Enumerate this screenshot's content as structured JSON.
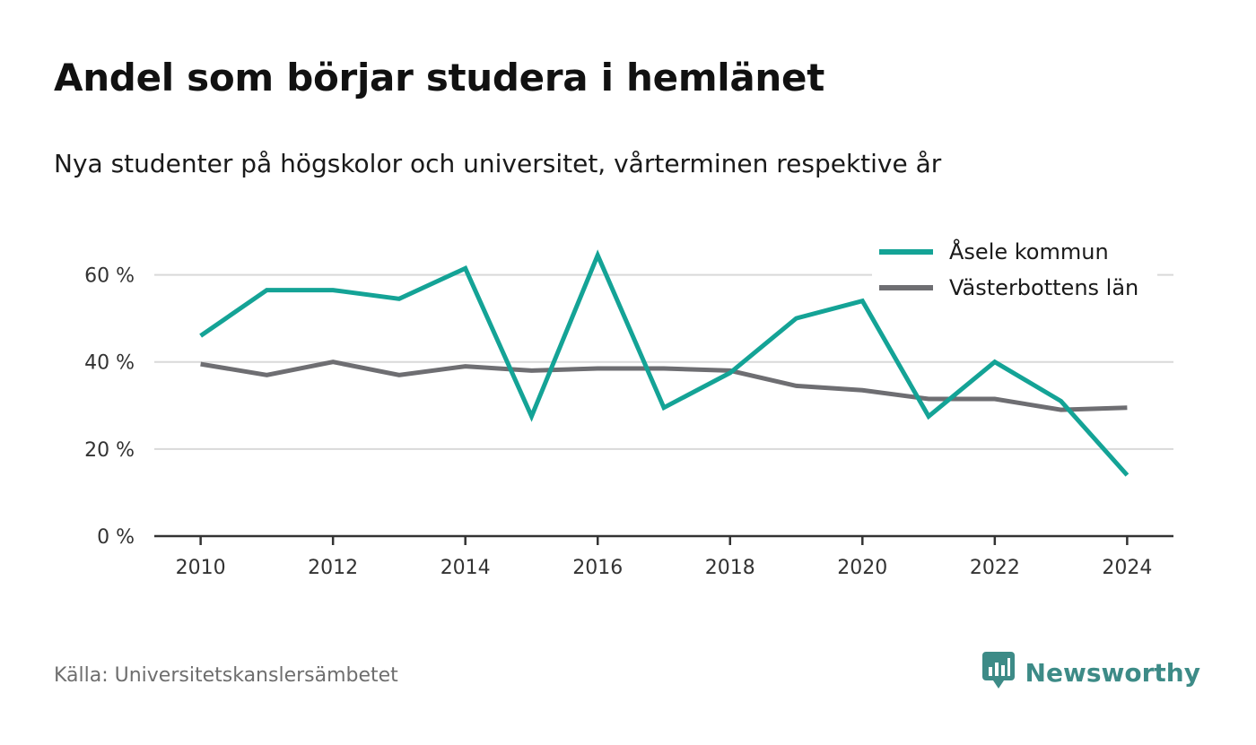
{
  "header": {
    "title": "Andel som börjar studera i hemlänet",
    "subtitle": "Nya studenter på högskolor och universitet, vårterminen respektive år"
  },
  "footer": {
    "source": "Källa: Universitetskanslersämbetet",
    "brand": "Newsworthy",
    "brand_icon": "newsworthy-logo-icon"
  },
  "colors": {
    "asele": "#14a396",
    "vasterbotten": "#6e6e72",
    "grid": "#d9d9d9",
    "axis": "#333333",
    "brand": "#3d8b87"
  },
  "chart_data": {
    "type": "line",
    "x": [
      2010,
      2011,
      2012,
      2013,
      2014,
      2015,
      2016,
      2017,
      2018,
      2019,
      2020,
      2021,
      2022,
      2023,
      2024
    ],
    "xticks": [
      2010,
      2012,
      2014,
      2016,
      2018,
      2020,
      2022,
      2024
    ],
    "xtick_labels": [
      "2010",
      "2012",
      "2014",
      "2016",
      "2018",
      "2020",
      "2022",
      "2024"
    ],
    "xlim": [
      2009.3,
      2024.7
    ],
    "ylim": [
      0,
      70
    ],
    "yticks": [
      0,
      20,
      40,
      60
    ],
    "ytick_labels": [
      "0 %",
      "20 %",
      "40 %",
      "60 %"
    ],
    "grid": true,
    "legend_position": "top-right",
    "series": [
      {
        "name": "Åsele kommun",
        "color": "#14a396",
        "values": [
          46,
          56.5,
          56.5,
          54.5,
          61.5,
          27.5,
          64.5,
          29.5,
          37.5,
          50,
          54,
          27.5,
          40,
          31,
          14
        ]
      },
      {
        "name": "Västerbottens län",
        "color": "#6e6e72",
        "values": [
          39.5,
          37,
          40,
          37,
          39,
          38,
          38.5,
          38.5,
          38,
          34.5,
          33.5,
          31.5,
          31.5,
          29,
          29.5
        ]
      }
    ]
  }
}
